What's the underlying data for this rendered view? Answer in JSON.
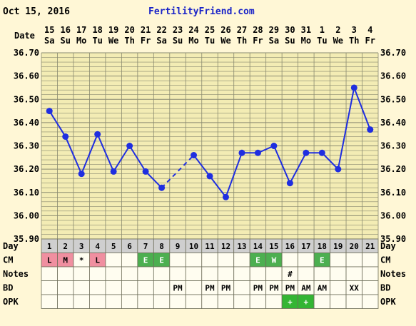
{
  "header": {
    "date": "Oct 15, 2016",
    "site": "FertilityFriend.com"
  },
  "row_labels": {
    "date": "Date",
    "day": "Day",
    "cm": "CM",
    "notes": "Notes",
    "bd": "BD",
    "opk": "OPK"
  },
  "chart_data": {
    "type": "line",
    "ylim": [
      35.9,
      36.7
    ],
    "y_ticks": [
      "36.70",
      "36.60",
      "36.50",
      "36.40",
      "36.30",
      "36.20",
      "36.10",
      "36.00",
      "35.90"
    ],
    "dates": [
      "15",
      "16",
      "17",
      "18",
      "19",
      "20",
      "21",
      "22",
      "23",
      "24",
      "25",
      "26",
      "27",
      "28",
      "29",
      "30",
      "31",
      "1",
      "2",
      "3",
      "4"
    ],
    "weekdays": [
      "Sa",
      "Su",
      "Mo",
      "Tu",
      "We",
      "Th",
      "Fr",
      "Sa",
      "Su",
      "Mo",
      "Tu",
      "We",
      "Th",
      "Fr",
      "Sa",
      "Su",
      "Mo",
      "Tu",
      "We",
      "Th",
      "Fr"
    ],
    "cycle_days": [
      "1",
      "2",
      "3",
      "4",
      "5",
      "6",
      "7",
      "8",
      "9",
      "10",
      "11",
      "12",
      "13",
      "14",
      "15",
      "16",
      "17",
      "18",
      "19",
      "20",
      "21"
    ],
    "temperatures": [
      36.45,
      36.34,
      36.18,
      36.35,
      36.19,
      36.3,
      36.19,
      36.12,
      null,
      36.26,
      36.17,
      36.08,
      36.27,
      36.27,
      36.3,
      36.14,
      36.27,
      36.27,
      36.2,
      36.55,
      36.37
    ],
    "cm": [
      "L",
      "M",
      "*",
      "L",
      "",
      "",
      "E",
      "E",
      "",
      "",
      "",
      "",
      "",
      "E",
      "W",
      "",
      "",
      "E",
      "",
      "",
      ""
    ],
    "notes": [
      "",
      "",
      "",
      "",
      "",
      "",
      "",
      "",
      "",
      "",
      "",
      "",
      "",
      "",
      "",
      "#",
      "",
      "",
      "",
      "",
      ""
    ],
    "bd": [
      "",
      "",
      "",
      "",
      "",
      "",
      "",
      "",
      "PM",
      "",
      "PM",
      "PM",
      "",
      "PM",
      "PM",
      "PM",
      "AM",
      "AM",
      "",
      "XX",
      ""
    ],
    "opk": [
      "",
      "",
      "",
      "",
      "",
      "",
      "",
      "",
      "",
      "",
      "",
      "",
      "",
      "",
      "",
      "+",
      "+",
      "",
      "",
      "",
      ""
    ],
    "colors": {
      "line": "#1f2ee0",
      "cm_menses": "#f08fa0",
      "cm_egg": "#4caf50",
      "opk_positive": "#33b533",
      "grid": "#8a8a70",
      "day_row": "#cfcfcf",
      "background": "#fff7d6"
    }
  }
}
